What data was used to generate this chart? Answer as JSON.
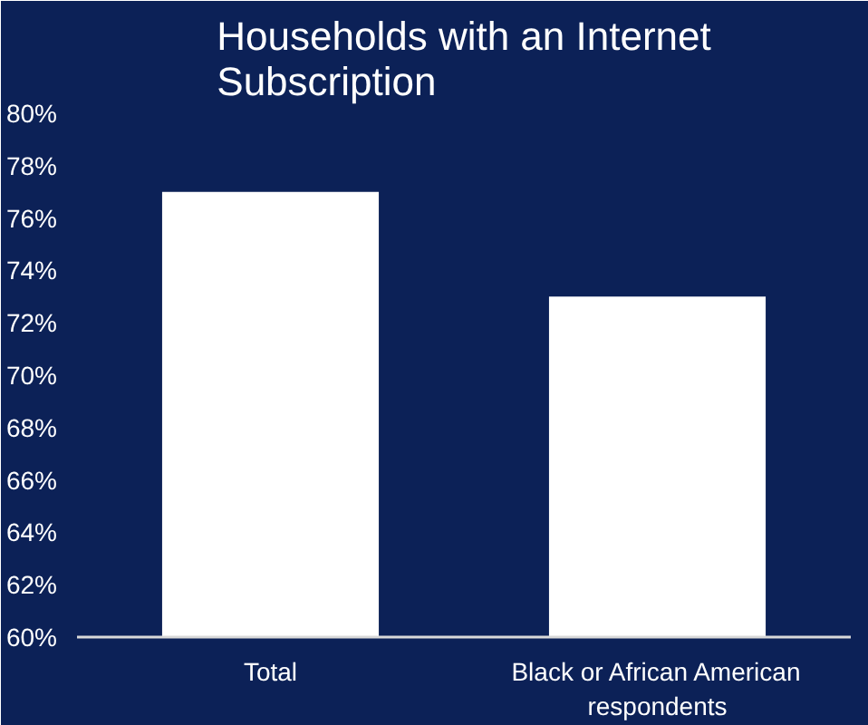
{
  "chart_data": {
    "type": "bar",
    "title": "Households with an Internet Subscription",
    "categories": [
      "Total",
      "Black or African American respondents"
    ],
    "values": [
      77,
      73
    ],
    "color": "#ffffff",
    "ylim": [
      60,
      80
    ],
    "yticks": [
      {
        "value": 60,
        "label": "60%"
      },
      {
        "value": 62,
        "label": "62%"
      },
      {
        "value": 64,
        "label": "64%"
      },
      {
        "value": 66,
        "label": "66%"
      },
      {
        "value": 68,
        "label": "68%"
      },
      {
        "value": 70,
        "label": "70%"
      },
      {
        "value": 72,
        "label": "72%"
      },
      {
        "value": 74,
        "label": "74%"
      },
      {
        "value": 76,
        "label": "76%"
      },
      {
        "value": 78,
        "label": "78%"
      },
      {
        "value": 80,
        "label": "80%"
      }
    ],
    "grid": false
  }
}
